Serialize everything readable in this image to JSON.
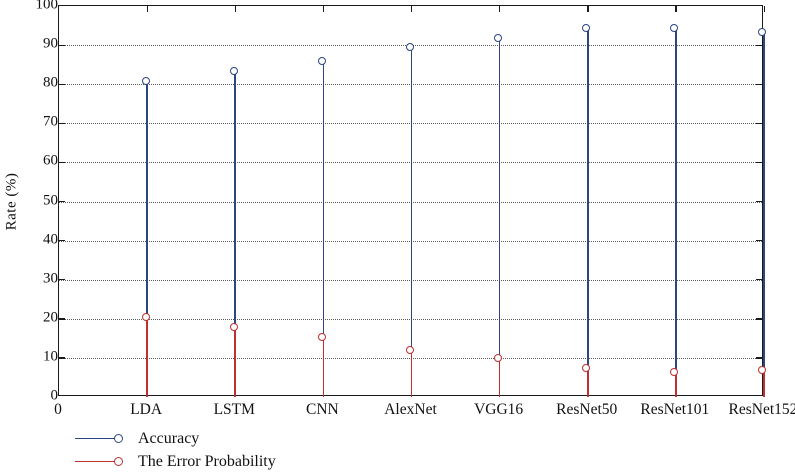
{
  "chart_data": {
    "type": "stem",
    "title": "",
    "ylabel": "Rate (%)",
    "xlabel": "",
    "ylim": [
      0,
      100
    ],
    "ytick_step": 10,
    "yticks": [
      0,
      10,
      20,
      30,
      40,
      50,
      60,
      70,
      80,
      90,
      100
    ],
    "x_origin_label": "0",
    "categories": [
      "LDA",
      "LSTM",
      "CNN",
      "AlexNet",
      "VGG16",
      "ResNet50",
      "ResNet101",
      "ResNet152"
    ],
    "series": [
      {
        "name": "Accuracy",
        "color": "#2b4680",
        "marker": "open-circle",
        "values": [
          80.5,
          83,
          85.5,
          89,
          91.5,
          94,
          94,
          93
        ]
      },
      {
        "name": "The Error Probability",
        "color": "#c03030",
        "marker": "open-circle",
        "values": [
          20,
          17.5,
          15,
          11.5,
          9.5,
          7,
          6,
          6.5
        ]
      }
    ],
    "grid": "horizontal-dotted",
    "legend_position": "below-bottom-left",
    "axis_box": true,
    "colors": {
      "axis": "#1a1a1a",
      "grid_dots": "#5a5a5a",
      "text": "#111111"
    }
  }
}
